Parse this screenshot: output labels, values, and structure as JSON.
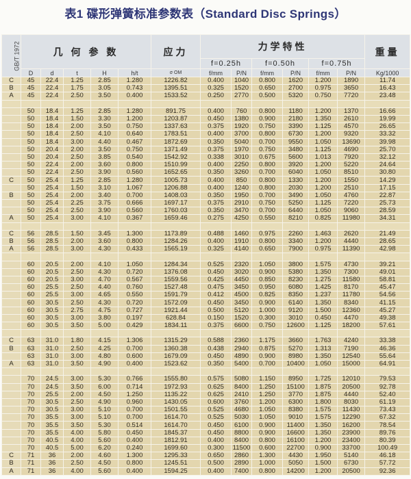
{
  "title": "表1 碟形弹簧标准参数表（Standard Disc Springs）",
  "header": {
    "standard": "GB/T 1972",
    "geometry": "几 何 参 数",
    "stress": "应力",
    "mechanics": "力学特性",
    "weight": "重量",
    "f025": "f=0.25h",
    "f050": "f=0.50h",
    "f075": "f=0.75h",
    "columns": [
      "D",
      "d",
      "t",
      "H",
      "h/t",
      "σ OM",
      "f/mm",
      "P/N",
      "f/mm",
      "P/N",
      "f/mm",
      "P/N",
      "Kg/1000"
    ]
  },
  "rows": [
    [
      "C",
      "45",
      "22.4",
      "1.25",
      "2.85",
      "1.280",
      "1226.82",
      "0.400",
      "1040",
      "0.800",
      "1620",
      "1.200",
      "1890",
      "11.74"
    ],
    [
      "B",
      "45",
      "22.4",
      "1.75",
      "3.05",
      "0.743",
      "1395.51",
      "0.325",
      "1520",
      "0.650",
      "2700",
      "0.975",
      "3650",
      "16.43"
    ],
    [
      "A",
      "45",
      "22.4",
      "2.50",
      "3.50",
      "0.400",
      "1533.52",
      "0.250",
      "2770",
      "0.500",
      "5320",
      "0.750",
      "7720",
      "23.48"
    ],
    [],
    [
      "",
      "50",
      "18.4",
      "1.25",
      "2.85",
      "1.280",
      "891.75",
      "0.400",
      "760",
      "0.800",
      "1180",
      "1.200",
      "1370",
      "16.66"
    ],
    [
      "",
      "50",
      "18.4",
      "1.50",
      "3.30",
      "1.200",
      "1203.87",
      "0.450",
      "1380",
      "0.900",
      "2180",
      "1.350",
      "2610",
      "19.99"
    ],
    [
      "",
      "50",
      "18.4",
      "2.00",
      "3.50",
      "0.750",
      "1337.63",
      "0.375",
      "1920",
      "0.750",
      "3390",
      "1.125",
      "4570",
      "26.65"
    ],
    [
      "",
      "50",
      "18.4",
      "2.50",
      "4.10",
      "0.640",
      "1783.51",
      "0.400",
      "3700",
      "0.800",
      "6730",
      "1.200",
      "9320",
      "33.32"
    ],
    [
      "",
      "50",
      "18.4",
      "3.00",
      "4.40",
      "0.467",
      "1872.69",
      "0.350",
      "5040",
      "0.700",
      "9550",
      "1.050",
      "13690",
      "39.98"
    ],
    [
      "",
      "50",
      "20.4",
      "2.00",
      "3.50",
      "0.750",
      "1371.49",
      "0.375",
      "1970",
      "0.750",
      "3480",
      "1.125",
      "4690",
      "25.70"
    ],
    [
      "",
      "50",
      "20.4",
      "2.50",
      "3.85",
      "0.540",
      "1542.92",
      "0.338",
      "3010",
      "0.675",
      "5600",
      "1.013",
      "7920",
      "32.12"
    ],
    [
      "",
      "50",
      "22.4",
      "2.00",
      "3.60",
      "0.800",
      "1510.99",
      "0.400",
      "2250",
      "0.800",
      "3920",
      "1.200",
      "5220",
      "24.64"
    ],
    [
      "",
      "50",
      "22.4",
      "2.50",
      "3.90",
      "0.560",
      "1652.65",
      "0.350",
      "3260",
      "0.700",
      "6040",
      "1.050",
      "8510",
      "30.80"
    ],
    [
      "C",
      "50",
      "25.4",
      "1.25",
      "2.85",
      "1.280",
      "1005.73",
      "0.400",
      "850",
      "0.800",
      "1330",
      "1.200",
      "1550",
      "14.29"
    ],
    [
      "",
      "50",
      "25.4",
      "1.50",
      "3.10",
      "1.067",
      "1206.88",
      "0.400",
      "1240",
      "0.800",
      "2030",
      "1.200",
      "2510",
      "17.15"
    ],
    [
      "B",
      "50",
      "25.4",
      "2.00",
      "3.40",
      "0.700",
      "1408.03",
      "0.350",
      "1950",
      "0.700",
      "3490",
      "1.050",
      "4760",
      "22.87"
    ],
    [
      "",
      "50",
      "25.4",
      "2.25",
      "3.75",
      "0.666",
      "1697.17",
      "0.375",
      "2910",
      "0.750",
      "5250",
      "1.125",
      "7220",
      "25.73"
    ],
    [
      "",
      "50",
      "25.4",
      "2.50",
      "3.90",
      "0.560",
      "1760.03",
      "0.350",
      "3470",
      "0.700",
      "6440",
      "1.050",
      "9060",
      "28.59"
    ],
    [
      "A",
      "50",
      "25.4",
      "3.00",
      "4.10",
      "0.367",
      "1659.46",
      "0.275",
      "4250",
      "0.550",
      "8210",
      "0.825",
      "11980",
      "34.31"
    ],
    [],
    [
      "C",
      "56",
      "28.5",
      "1.50",
      "3.45",
      "1.300",
      "1173.89",
      "0.488",
      "1460",
      "0.975",
      "2260",
      "1.463",
      "2620",
      "21.49"
    ],
    [
      "B",
      "56",
      "28.5",
      "2.00",
      "3.60",
      "0.800",
      "1284.26",
      "0.400",
      "1910",
      "0.800",
      "3340",
      "1.200",
      "4440",
      "28.65"
    ],
    [
      "A",
      "56",
      "28.5",
      "3.00",
      "4.30",
      "0.433",
      "1565.19",
      "0.325",
      "4140",
      "0.650",
      "7900",
      "0.975",
      "11390",
      "42.98"
    ],
    [],
    [
      "",
      "60",
      "20.5",
      "2.00",
      "4.10",
      "1.050",
      "1284.34",
      "0.525",
      "2320",
      "1.050",
      "3800",
      "1.575",
      "4730",
      "39.21"
    ],
    [
      "",
      "60",
      "20.5",
      "2.50",
      "4.30",
      "0.720",
      "1376.08",
      "0.450",
      "3020",
      "0.900",
      "5380",
      "1.350",
      "7300",
      "49.01"
    ],
    [
      "",
      "60",
      "20.5",
      "3.00",
      "4.70",
      "0.567",
      "1559.56",
      "0.425",
      "4450",
      "0.850",
      "8230",
      "1.275",
      "11580",
      "58.81"
    ],
    [
      "",
      "60",
      "25.5",
      "2.50",
      "4.40",
      "0.760",
      "1527.48",
      "0.475",
      "3450",
      "0.950",
      "6080",
      "1.425",
      "8170",
      "45.47"
    ],
    [
      "",
      "60",
      "25.5",
      "3.00",
      "4.65",
      "0.550",
      "1591.79",
      "0.412",
      "4500",
      "0.825",
      "8350",
      "1.237",
      "11780",
      "54.56"
    ],
    [
      "",
      "60",
      "30.5",
      "2.50",
      "4.30",
      "0.720",
      "1572.09",
      "0.450",
      "3450",
      "0.900",
      "6140",
      "1.350",
      "8340",
      "41.15"
    ],
    [
      "",
      "60",
      "30.5",
      "2.75",
      "4.75",
      "0.727",
      "1921.44",
      "0.500",
      "5120",
      "1.000",
      "9120",
      "1.500",
      "12360",
      "45.27"
    ],
    [
      "",
      "60",
      "30.5",
      "3.00",
      "3.80",
      "0.197",
      "628.84",
      "0.150",
      "1520",
      "0.300",
      "3010",
      "0.450",
      "4470",
      "49.38"
    ],
    [
      "",
      "60",
      "30.5",
      "3.50",
      "5.00",
      "0.429",
      "1834.11",
      "0.375",
      "6600",
      "0.750",
      "12600",
      "1.125",
      "18200",
      "57.61"
    ],
    [],
    [
      "C",
      "63",
      "31.0",
      "1.80",
      "4.15",
      "1.306",
      "1315.29",
      "0.588",
      "2360",
      "1.175",
      "3660",
      "1.763",
      "4240",
      "33.38"
    ],
    [
      "B",
      "63",
      "31.0",
      "2.50",
      "4.25",
      "0.700",
      "1360.38",
      "0.438",
      "2940",
      "0.875",
      "5270",
      "1.313",
      "7190",
      "46.36"
    ],
    [
      "",
      "63",
      "31.0",
      "3.00",
      "4.80",
      "0.600",
      "1679.09",
      "0.450",
      "4890",
      "0.900",
      "8980",
      "1.350",
      "12540",
      "55.64"
    ],
    [
      "A",
      "63",
      "31.0",
      "3.50",
      "4.90",
      "0.400",
      "1523.62",
      "0.350",
      "5400",
      "0.700",
      "10400",
      "1.050",
      "15000",
      "64.91"
    ],
    [],
    [
      "",
      "70",
      "24.5",
      "3.00",
      "5.30",
      "0.766",
      "1555.80",
      "0.575",
      "5080",
      "1.150",
      "8950",
      "1.725",
      "12010",
      "79.53"
    ],
    [
      "",
      "70",
      "24.5",
      "3.50",
      "6.00",
      "0.714",
      "1972.93",
      "0.625",
      "8400",
      "1.250",
      "15100",
      "1.875",
      "20500",
      "92.78"
    ],
    [
      "",
      "70",
      "25.5",
      "2.00",
      "4.50",
      "1.250",
      "1135.22",
      "0.625",
      "2410",
      "1.250",
      "3770",
      "1.875",
      "4440",
      "52.40"
    ],
    [
      "",
      "70",
      "30.5",
      "2.50",
      "4.90",
      "0.960",
      "1430.05",
      "0.600",
      "3760",
      "1.200",
      "6300",
      "1.800",
      "8030",
      "61.19"
    ],
    [
      "",
      "70",
      "30.5",
      "3.00",
      "5.10",
      "0.700",
      "1501.55",
      "0.525",
      "4680",
      "1.050",
      "8380",
      "1.575",
      "11430",
      "73.43"
    ],
    [
      "",
      "70",
      "35.5",
      "3.00",
      "5.10",
      "0.700",
      "1614.70",
      "0.525",
      "5030",
      "1.050",
      "9010",
      "1.575",
      "12290",
      "67.32"
    ],
    [
      "",
      "70",
      "35.5",
      "3.50",
      "5.30",
      "0.514",
      "1614.70",
      "0.450",
      "6100",
      "0.900",
      "11400",
      "1.350",
      "16200",
      "78.54"
    ],
    [
      "",
      "70",
      "35.5",
      "4.00",
      "5.80",
      "0.450",
      "1845.37",
      "0.450",
      "8800",
      "0.900",
      "16600",
      "1.350",
      "23900",
      "89.76"
    ],
    [
      "",
      "70",
      "40.5",
      "4.00",
      "5.60",
      "0.400",
      "1812.91",
      "0.400",
      "8400",
      "0.800",
      "16100",
      "1.200",
      "23400",
      "80.39"
    ],
    [
      "",
      "70",
      "40.5",
      "5.00",
      "6.20",
      "0.240",
      "1699.60",
      "0.300",
      "11500",
      "0.600",
      "22700",
      "0.900",
      "33700",
      "100.49"
    ],
    [
      "C",
      "71",
      "36",
      "2.00",
      "4.60",
      "1.300",
      "1295.33",
      "0.650",
      "2860",
      "1.300",
      "4430",
      "1.950",
      "5140",
      "46.18"
    ],
    [
      "B",
      "71",
      "36",
      "2.50",
      "4.50",
      "0.800",
      "1245.51",
      "0.500",
      "2890",
      "1.000",
      "5050",
      "1.500",
      "6730",
      "57.72"
    ],
    [
      "A",
      "71",
      "36",
      "4.00",
      "5.60",
      "0.400",
      "1594.25",
      "0.400",
      "7400",
      "0.800",
      "14200",
      "1.200",
      "20500",
      "92.36"
    ]
  ],
  "colors": {
    "title": "#2e3676",
    "header_bg": "#dde1e6",
    "cell_bg": "#e3d6ae",
    "grid": "#f6f3ea"
  }
}
